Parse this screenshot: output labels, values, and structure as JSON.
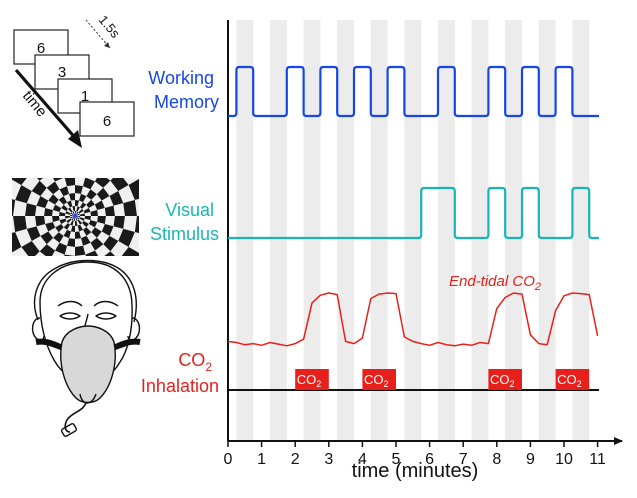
{
  "colors": {
    "working_memory": "#1646e6",
    "visual_stimulus": "#19b5b5",
    "co2": "#e8201b",
    "axis": "#111111",
    "band": "#ececec"
  },
  "task_icon": {
    "cards": [
      "6",
      "3",
      "1",
      "6"
    ],
    "interval_label": "1.5s",
    "time_label": "time"
  },
  "labels": {
    "working_memory_line1": "Working",
    "working_memory_line2": "Memory",
    "visual_line1": "Visual",
    "visual_line2": "Stimulus",
    "co2_line1_main": "CO",
    "co2_line1_sub": "2",
    "co2_line2": "Inhalation",
    "end_tidal_main": "End-tidal CO",
    "end_tidal_sub": "2",
    "co2_block_main": "CO",
    "co2_block_sub": "2"
  },
  "chart_data": {
    "type": "line",
    "xlabel": "time (minutes)",
    "xlim": [
      0,
      11
    ],
    "x_ticks": [
      "0",
      "1",
      "2",
      "3",
      "4",
      "5",
      "6",
      "7",
      "8",
      "9",
      "10",
      "11"
    ],
    "grid": false,
    "series": [
      {
        "name": "Working Memory",
        "on_intervals": [
          [
            0.25,
            0.75
          ],
          [
            1.75,
            2.25
          ],
          [
            2.75,
            3.25
          ],
          [
            3.75,
            4.25
          ],
          [
            4.75,
            5.25
          ],
          [
            6.25,
            6.75
          ],
          [
            7.75,
            8.25
          ],
          [
            8.75,
            9.25
          ],
          [
            9.75,
            10.25
          ]
        ]
      },
      {
        "name": "Visual Stimulus",
        "on_intervals": [
          [
            5.75,
            6.75
          ],
          [
            7.75,
            8.25
          ],
          [
            8.75,
            9.25
          ],
          [
            10.25,
            10.75
          ]
        ]
      },
      {
        "name": "End-tidal CO2",
        "x": [
          0,
          0.25,
          0.5,
          0.75,
          1,
          1.25,
          1.5,
          1.75,
          2,
          2.25,
          2.5,
          2.75,
          3,
          3.25,
          3.5,
          3.75,
          4,
          4.25,
          4.5,
          4.75,
          5,
          5.25,
          5.5,
          5.75,
          6,
          6.25,
          6.5,
          6.75,
          7,
          7.25,
          7.5,
          7.75,
          8,
          8.25,
          8.5,
          8.75,
          9,
          9.25,
          9.5,
          9.75,
          10,
          10.25,
          10.5,
          10.75,
          11
        ],
        "y": [
          0.12,
          0.1,
          0.06,
          0.08,
          0.05,
          0.1,
          0.07,
          0.04,
          0.08,
          0.16,
          0.82,
          0.96,
          1.0,
          0.97,
          0.12,
          0.08,
          0.18,
          0.9,
          0.98,
          1.0,
          0.99,
          0.2,
          0.12,
          0.08,
          0.05,
          0.1,
          0.06,
          0.04,
          0.07,
          0.05,
          0.1,
          0.08,
          0.72,
          0.92,
          1.0,
          0.98,
          0.24,
          0.08,
          0.06,
          0.68,
          0.95,
          1.0,
          0.99,
          0.97,
          0.22
        ]
      }
    ],
    "co2_blocks": [
      [
        2,
        3
      ],
      [
        4,
        5
      ],
      [
        7.75,
        8.75
      ],
      [
        9.75,
        10.75
      ]
    ],
    "shaded_bands": [
      [
        0.25,
        0.75
      ],
      [
        1.25,
        1.75
      ],
      [
        2.25,
        2.75
      ],
      [
        3.25,
        3.75
      ],
      [
        4.25,
        4.75
      ],
      [
        5.25,
        5.75
      ],
      [
        6.25,
        6.75
      ],
      [
        7.25,
        7.75
      ],
      [
        8.25,
        8.75
      ],
      [
        9.25,
        9.75
      ],
      [
        10.25,
        10.75
      ]
    ]
  }
}
